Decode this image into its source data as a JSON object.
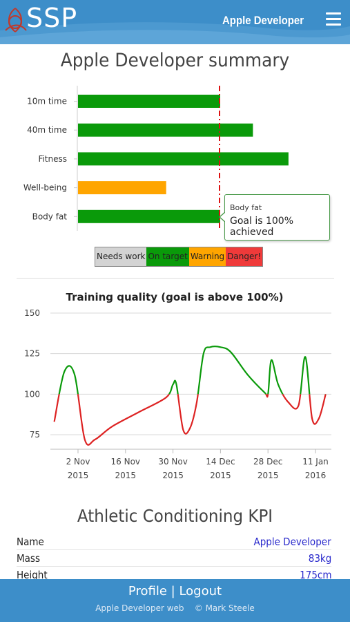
{
  "header": {
    "brand": "SSP",
    "user_name": "Apple Developer",
    "menu_icon": "hamburger-menu-icon",
    "logo_icon": "triquetra-knot-icon"
  },
  "summary": {
    "title": "Apple Developer summary"
  },
  "summary_chart": {
    "type": "bar",
    "categories": [
      "10m time",
      "40m time",
      "Fitness",
      "Well-being",
      "Body fat"
    ],
    "values": [
      100,
      123,
      148,
      62,
      100
    ],
    "colors": [
      "#0a9a0a",
      "#0a9a0a",
      "#0a9a0a",
      "#ffa500",
      "#0a9a0a"
    ],
    "goal_value": 100,
    "xlim": [
      0,
      150
    ]
  },
  "legend": [
    {
      "label": "Needs work",
      "color": "#d3d3d3"
    },
    {
      "label": "On target",
      "color": "#0a9a0a"
    },
    {
      "label": "Warning",
      "color": "#ffa500"
    },
    {
      "label": "Danger!",
      "color": "#ef3a3a"
    }
  ],
  "tooltip": {
    "title": "Body fat",
    "body": "Goal is 100% achieved"
  },
  "chart_data": {
    "type": "line",
    "title": "Training quality (goal is above 100%)",
    "ylim": [
      70,
      150
    ],
    "y_ticks": [
      150,
      125,
      100,
      75
    ],
    "x_ticks": [
      {
        "date": "2015-11-02",
        "label1": "2 Nov",
        "label2": "2015"
      },
      {
        "date": "2015-11-16",
        "label1": "16 Nov",
        "label2": "2015"
      },
      {
        "date": "2015-11-30",
        "label1": "30 Nov",
        "label2": "2015"
      },
      {
        "date": "2015-12-14",
        "label1": "14 Dec",
        "label2": "2015"
      },
      {
        "date": "2015-12-28",
        "label1": "28 Dec",
        "label2": "2015"
      },
      {
        "date": "2016-01-11",
        "label1": "11 Jan",
        "label2": "2016"
      }
    ],
    "x": [
      "2015-10-26",
      "2015-10-29",
      "2015-11-01",
      "2015-11-04",
      "2015-11-07",
      "2015-11-12",
      "2015-11-20",
      "2015-11-28",
      "2015-11-30",
      "2015-12-01",
      "2015-12-03",
      "2015-12-05",
      "2015-12-07",
      "2015-12-09",
      "2015-12-11",
      "2015-12-14",
      "2015-12-17",
      "2015-12-22",
      "2015-12-27",
      "2015-12-28",
      "2015-12-29",
      "2015-12-31",
      "2016-01-03",
      "2016-01-06",
      "2016-01-08",
      "2016-01-10",
      "2016-01-12",
      "2016-01-14"
    ],
    "y": [
      83,
      114,
      112,
      72,
      72,
      80,
      89,
      98,
      106,
      106,
      78,
      79,
      95,
      125,
      129,
      129,
      126,
      112,
      101,
      100,
      121,
      106,
      95,
      93,
      123,
      85,
      85,
      100
    ],
    "goal": 100,
    "above_color": "#0a9a0a",
    "below_color": "#dd2222",
    "grid": true
  },
  "kpi": {
    "title": "Athletic Conditioning KPI",
    "rows": [
      {
        "key": "Name",
        "value": "Apple Developer"
      },
      {
        "key": "Mass",
        "value": "83kg"
      },
      {
        "key": "Height",
        "value": "175cm"
      }
    ]
  },
  "footer": {
    "profile_link": "Profile",
    "separator": "|",
    "logout_link": "Logout",
    "credit": "Apple Developer web    © Mark Steele"
  }
}
